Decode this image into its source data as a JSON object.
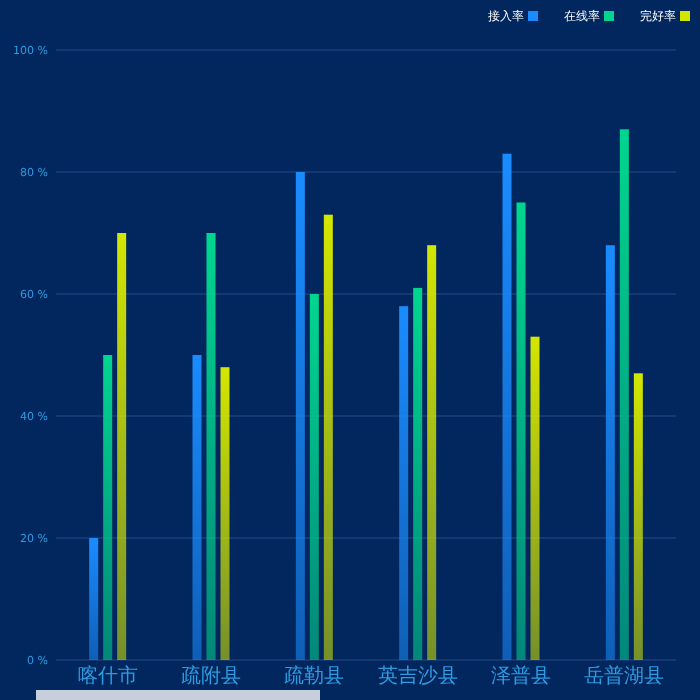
{
  "chart_data": {
    "type": "bar",
    "categories": [
      "喀什市",
      "疏附县",
      "疏勒县",
      "英吉沙县",
      "泽普县",
      "岳普湖县"
    ],
    "series": [
      {
        "name": "接入率",
        "color": "#1a8cff",
        "values": [
          20,
          50,
          80,
          58,
          83,
          68
        ]
      },
      {
        "name": "在线率",
        "color": "#00d68f",
        "values": [
          50,
          70,
          60,
          61,
          75,
          87
        ]
      },
      {
        "name": "完好率",
        "color": "#d4e600",
        "values": [
          70,
          48,
          73,
          68,
          53,
          47
        ]
      }
    ],
    "ylim": [
      0,
      100
    ],
    "yticks": [
      {
        "value": 0,
        "label": "0 %"
      },
      {
        "value": 20,
        "label": "20 %"
      },
      {
        "value": 40,
        "label": "40 %"
      },
      {
        "value": 60,
        "label": "60 %"
      },
      {
        "value": 80,
        "label": "80 %"
      },
      {
        "value": 100,
        "label": "100 %"
      }
    ],
    "grid": "y",
    "legend": "top right"
  }
}
